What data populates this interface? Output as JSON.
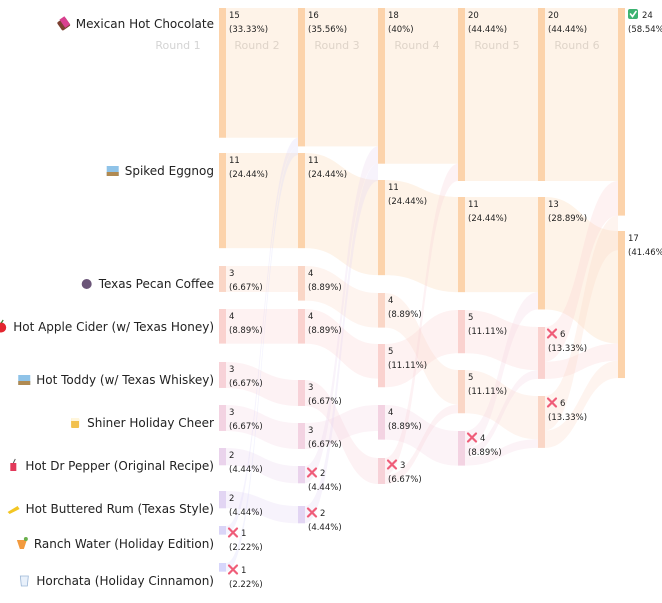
{
  "chart_data": {
    "type": "sankey",
    "title": "",
    "rounds": [
      "Round 1",
      "Round 2",
      "Round 3",
      "Round 4",
      "Round 5",
      "Round 6"
    ],
    "candidates": [
      {
        "id": "mhc",
        "name": "Mexican Hot Chocolate",
        "icon": "chocolate-icon",
        "color": "#fcd3ab"
      },
      {
        "id": "se",
        "name": "Spiked Eggnog",
        "icon": "eggnog-icon",
        "color": "#fcd3ab"
      },
      {
        "id": "tpc",
        "name": "Texas Pecan Coffee",
        "icon": "coffee-icon",
        "color": "#fad6c6"
      },
      {
        "id": "hac",
        "name": "Hot Apple Cider (w/ Texas Honey)",
        "icon": "apple-icon",
        "color": "#fad2cf"
      },
      {
        "id": "ht",
        "name": "Hot Toddy (w/ Texas Whiskey)",
        "icon": "toddy-icon",
        "color": "#f7d2d8"
      },
      {
        "id": "shc",
        "name": "Shiner Holiday Cheer",
        "icon": "beer-icon",
        "color": "#f3d3e2"
      },
      {
        "id": "hdp",
        "name": "Hot Dr Pepper (Original Recipe)",
        "icon": "soda-icon",
        "color": "#ead3ec"
      },
      {
        "id": "hbr",
        "name": "Hot Buttered Rum (Texas Style)",
        "icon": "butter-icon",
        "color": "#e2d5f3"
      },
      {
        "id": "rw",
        "name": "Ranch Water (Holiday Edition)",
        "icon": "cocktail-icon",
        "color": "#dad5f7"
      },
      {
        "id": "hc",
        "name": "Horchata (Holiday Cinnamon)",
        "icon": "cup-icon",
        "color": "#d7d6fb"
      }
    ],
    "columns": [
      {
        "round": "Round 1",
        "nodes": [
          {
            "c": "mhc",
            "votes": 15,
            "pct": "33.33%"
          },
          {
            "c": "se",
            "votes": 11,
            "pct": "24.44%"
          },
          {
            "c": "tpc",
            "votes": 3,
            "pct": "6.67%"
          },
          {
            "c": "hac",
            "votes": 4,
            "pct": "8.89%"
          },
          {
            "c": "ht",
            "votes": 3,
            "pct": "6.67%"
          },
          {
            "c": "shc",
            "votes": 3,
            "pct": "6.67%"
          },
          {
            "c": "hdp",
            "votes": 2,
            "pct": "4.44%"
          },
          {
            "c": "hbr",
            "votes": 2,
            "pct": "4.44%"
          },
          {
            "c": "rw",
            "votes": 1,
            "pct": "2.22%",
            "eliminated": true
          },
          {
            "c": "hc",
            "votes": 1,
            "pct": "2.22%",
            "eliminated": true
          }
        ]
      },
      {
        "round": "Round 2",
        "nodes": [
          {
            "c": "mhc",
            "votes": 16,
            "pct": "35.56%"
          },
          {
            "c": "se",
            "votes": 11,
            "pct": "24.44%"
          },
          {
            "c": "tpc",
            "votes": 4,
            "pct": "8.89%"
          },
          {
            "c": "hac",
            "votes": 4,
            "pct": "8.89%"
          },
          {
            "c": "ht",
            "votes": 3,
            "pct": "6.67%"
          },
          {
            "c": "shc",
            "votes": 3,
            "pct": "6.67%"
          },
          {
            "c": "hdp",
            "votes": 2,
            "pct": "4.44%",
            "eliminated": true
          },
          {
            "c": "hbr",
            "votes": 2,
            "pct": "4.44%",
            "eliminated": true
          }
        ]
      },
      {
        "round": "Round 3",
        "nodes": [
          {
            "c": "mhc",
            "votes": 18,
            "pct": "40%"
          },
          {
            "c": "se",
            "votes": 11,
            "pct": "24.44%"
          },
          {
            "c": "tpc",
            "votes": 4,
            "pct": "8.89%"
          },
          {
            "c": "hac",
            "votes": 5,
            "pct": "11.11%"
          },
          {
            "c": "shc",
            "votes": 4,
            "pct": "8.89%"
          },
          {
            "c": "ht",
            "votes": 3,
            "pct": "6.67%",
            "eliminated": true
          }
        ]
      },
      {
        "round": "Round 4",
        "nodes": [
          {
            "c": "mhc",
            "votes": 20,
            "pct": "44.44%"
          },
          {
            "c": "se",
            "votes": 11,
            "pct": "24.44%"
          },
          {
            "c": "hac",
            "votes": 5,
            "pct": "11.11%"
          },
          {
            "c": "tpc",
            "votes": 5,
            "pct": "11.11%"
          },
          {
            "c": "shc",
            "votes": 4,
            "pct": "8.89%",
            "eliminated": true
          }
        ]
      },
      {
        "round": "Round 5",
        "nodes": [
          {
            "c": "mhc",
            "votes": 20,
            "pct": "44.44%"
          },
          {
            "c": "se",
            "votes": 13,
            "pct": "28.89%"
          },
          {
            "c": "hac",
            "votes": 6,
            "pct": "13.33%",
            "eliminated": true
          },
          {
            "c": "tpc",
            "votes": 6,
            "pct": "13.33%",
            "eliminated": true
          }
        ]
      },
      {
        "round": "Round 6",
        "nodes": [
          {
            "c": "mhc",
            "votes": 24,
            "pct": "58.54%",
            "winner": true
          },
          {
            "c": "se",
            "votes": 17,
            "pct": "41.46%"
          }
        ]
      }
    ]
  }
}
